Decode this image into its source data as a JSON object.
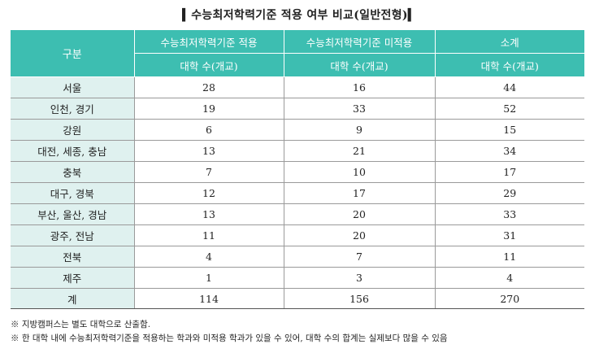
{
  "title": "▍수능최저학력기준 적용 여부 비교(일반전형)▍",
  "table": {
    "header_row_label": "구분",
    "groups": [
      "수능최저학력기준 적용",
      "수능최저학력기준 미적용",
      "소계"
    ],
    "sub_header": "대학 수(개교)",
    "rows": [
      {
        "region": "서울",
        "applied": "28",
        "not_applied": "16",
        "subtotal": "44"
      },
      {
        "region": "인천, 경기",
        "applied": "19",
        "not_applied": "33",
        "subtotal": "52"
      },
      {
        "region": "강원",
        "applied": "6",
        "not_applied": "9",
        "subtotal": "15"
      },
      {
        "region": "대전, 세종, 충남",
        "applied": "13",
        "not_applied": "21",
        "subtotal": "34"
      },
      {
        "region": "충북",
        "applied": "7",
        "not_applied": "10",
        "subtotal": "17"
      },
      {
        "region": "대구, 경북",
        "applied": "12",
        "not_applied": "17",
        "subtotal": "29"
      },
      {
        "region": "부산, 울산, 경남",
        "applied": "13",
        "not_applied": "20",
        "subtotal": "33"
      },
      {
        "region": "광주, 전남",
        "applied": "11",
        "not_applied": "20",
        "subtotal": "31"
      },
      {
        "region": "전북",
        "applied": "4",
        "not_applied": "7",
        "subtotal": "11"
      },
      {
        "region": "제주",
        "applied": "1",
        "not_applied": "3",
        "subtotal": "4"
      }
    ],
    "total": {
      "region": "계",
      "applied": "114",
      "not_applied": "156",
      "subtotal": "270"
    }
  },
  "notes": [
    "※ 지방캠퍼스는 별도 대학으로 산출함.",
    "※ 한 대학 내에 수능최저학력기준을 적용하는 학과와 미적용 학과가 있을 수 있어, 대학 수의 합계는 실제보다 많을 수 있음"
  ],
  "colors": {
    "header": "#3dbeb1",
    "label_cell": "#dff1ef",
    "border": "#9a9a9a"
  }
}
